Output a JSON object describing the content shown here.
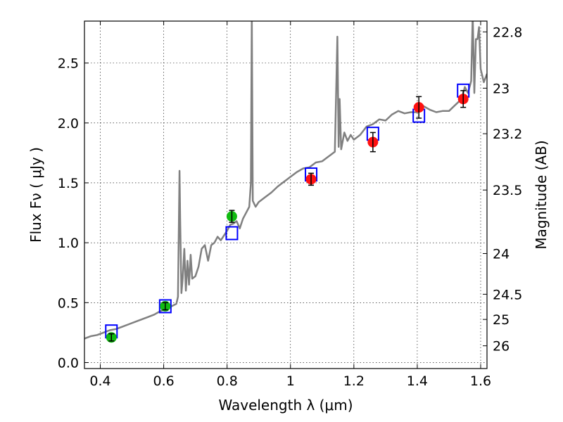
{
  "chart_data": {
    "type": "line",
    "xlabel": "Wavelength  λ (μm)",
    "ylabel_left": "Flux  Fν  ( μJy )",
    "ylabel_right": "Magnitude (AB)",
    "xlim": [
      0.35,
      1.62
    ],
    "ylim": [
      -0.05,
      2.85
    ],
    "x_ticks": [
      0.4,
      0.6,
      0.8,
      1.0,
      1.2,
      1.4,
      1.6
    ],
    "x_tick_labels": [
      "0.4",
      "0.6",
      "0.8",
      "1",
      "1.2",
      "1.4",
      "1.6"
    ],
    "y_ticks": [
      0.0,
      0.5,
      1.0,
      1.5,
      2.0,
      2.5
    ],
    "y_tick_labels": [
      "0.0",
      "0.5",
      "1.0",
      "1.5",
      "2.0",
      "2.5"
    ],
    "right_ticks": [
      {
        "flux": 2.76,
        "label": "22.8"
      },
      {
        "flux": 2.29,
        "label": "23"
      },
      {
        "flux": 1.91,
        "label": "23.2"
      },
      {
        "flux": 1.44,
        "label": "23.5"
      },
      {
        "flux": 0.91,
        "label": "24"
      },
      {
        "flux": 0.57,
        "label": "24.5"
      },
      {
        "flux": 0.36,
        "label": "25"
      },
      {
        "flux": 0.14,
        "label": "26"
      }
    ],
    "grid": true,
    "colors": {
      "spectrum": "#808080",
      "model_box": "#0000ff",
      "green_points": "#11bb11",
      "red_points": "#ff1111",
      "error_bars": "#000000"
    },
    "series": [
      {
        "name": "model spectrum",
        "x": [
          0.35,
          0.37,
          0.39,
          0.41,
          0.43,
          0.45,
          0.47,
          0.49,
          0.51,
          0.53,
          0.55,
          0.57,
          0.59,
          0.61,
          0.625,
          0.64,
          0.645,
          0.65,
          0.652,
          0.656,
          0.66,
          0.665,
          0.67,
          0.675,
          0.68,
          0.685,
          0.69,
          0.7,
          0.71,
          0.72,
          0.73,
          0.74,
          0.75,
          0.76,
          0.77,
          0.78,
          0.79,
          0.8,
          0.81,
          0.82,
          0.83,
          0.84,
          0.85,
          0.86,
          0.87,
          0.875,
          0.878,
          0.881,
          0.89,
          0.9,
          0.92,
          0.94,
          0.96,
          0.98,
          1.0,
          1.02,
          1.04,
          1.06,
          1.08,
          1.1,
          1.12,
          1.14,
          1.148,
          1.152,
          1.155,
          1.16,
          1.17,
          1.18,
          1.19,
          1.2,
          1.22,
          1.24,
          1.26,
          1.28,
          1.3,
          1.32,
          1.34,
          1.36,
          1.38,
          1.4,
          1.42,
          1.44,
          1.46,
          1.48,
          1.5,
          1.52,
          1.54,
          1.55,
          1.56,
          1.57,
          1.575,
          1.58,
          1.585,
          1.59,
          1.595,
          1.6,
          1.61,
          1.62
        ],
        "y": [
          0.2,
          0.22,
          0.23,
          0.25,
          0.27,
          0.28,
          0.3,
          0.32,
          0.34,
          0.36,
          0.38,
          0.4,
          0.43,
          0.45,
          0.47,
          0.49,
          0.55,
          1.6,
          1.2,
          0.58,
          0.7,
          0.95,
          0.6,
          0.85,
          0.65,
          0.9,
          0.7,
          0.72,
          0.8,
          0.95,
          0.98,
          0.85,
          0.98,
          1.0,
          1.05,
          1.02,
          1.06,
          1.1,
          1.15,
          1.16,
          1.18,
          1.12,
          1.2,
          1.25,
          1.3,
          1.5,
          2.9,
          1.35,
          1.3,
          1.34,
          1.38,
          1.42,
          1.47,
          1.51,
          1.55,
          1.59,
          1.62,
          1.63,
          1.67,
          1.68,
          1.72,
          1.76,
          2.72,
          1.8,
          2.2,
          1.78,
          1.92,
          1.85,
          1.9,
          1.86,
          1.9,
          1.97,
          1.99,
          2.03,
          2.02,
          2.07,
          2.1,
          2.08,
          2.09,
          2.09,
          2.14,
          2.11,
          2.09,
          2.1,
          2.1,
          2.15,
          2.2,
          2.3,
          2.25,
          2.35,
          2.9,
          2.25,
          2.7,
          2.7,
          2.8,
          2.45,
          2.34,
          2.41
        ]
      },
      {
        "name": "model photometry",
        "marker": "open square",
        "x": [
          0.435,
          0.605,
          0.815,
          1.065,
          1.26,
          1.405,
          1.545
        ],
        "y": [
          0.26,
          0.47,
          1.08,
          1.57,
          1.91,
          2.06,
          2.27
        ]
      },
      {
        "name": "observed (optical)",
        "marker": "filled circle",
        "x": [
          0.435,
          0.605,
          0.815
        ],
        "y": [
          0.21,
          0.47,
          1.22
        ],
        "yerr": [
          0.03,
          0.03,
          0.05
        ]
      },
      {
        "name": "observed (near-IR)",
        "marker": "filled circle",
        "x": [
          1.065,
          1.26,
          1.405,
          1.545
        ],
        "y": [
          1.53,
          1.84,
          2.13,
          2.2
        ],
        "yerr": [
          0.05,
          0.08,
          0.09,
          0.07
        ]
      }
    ]
  }
}
